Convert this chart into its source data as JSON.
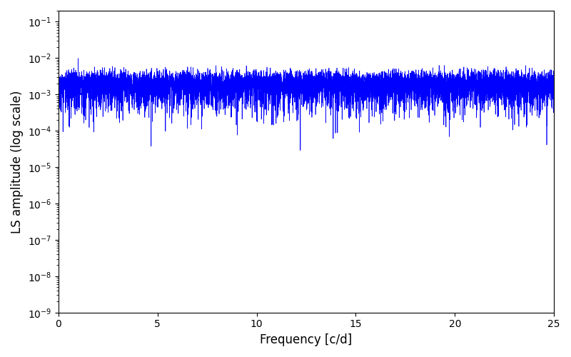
{
  "xlabel": "Frequency [c/d]",
  "ylabel": "LS amplitude (log scale)",
  "xlim": [
    0,
    25
  ],
  "ylim": [
    1e-09,
    0.2
  ],
  "line_color": "#0000FF",
  "line_width": 0.5,
  "background_color": "#ffffff",
  "fig_width": 8.0,
  "fig_height": 5.0,
  "dpi": 100,
  "yscale": "log",
  "freq_max": 25.0,
  "n_freqs": 8000,
  "seed": 137
}
